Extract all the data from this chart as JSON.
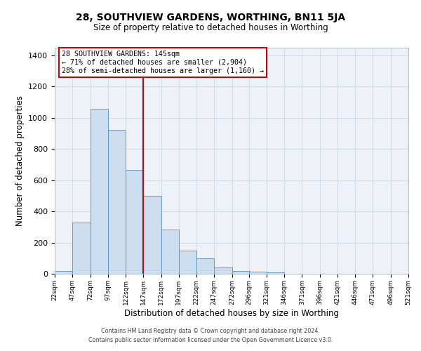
{
  "title_line1": "28, SOUTHVIEW GARDENS, WORTHING, BN11 5JA",
  "title_line2": "Size of property relative to detached houses in Worthing",
  "xlabel": "Distribution of detached houses by size in Worthing",
  "ylabel": "Number of detached properties",
  "bins": [
    22,
    47,
    72,
    97,
    122,
    147,
    172,
    197,
    222,
    247,
    272,
    296,
    321,
    346,
    371,
    396,
    421,
    446,
    471,
    496,
    521
  ],
  "counts": [
    20,
    330,
    1055,
    920,
    665,
    500,
    285,
    148,
    100,
    42,
    20,
    15,
    8,
    0,
    0,
    0,
    0,
    0,
    0,
    0
  ],
  "bar_color": "#ccddf0",
  "bar_edge_color": "#5a8fbd",
  "vline_x": 147,
  "vline_color": "#cc0000",
  "annotation_title": "28 SOUTHVIEW GARDENS: 145sqm",
  "annotation_line1": "← 71% of detached houses are smaller (2,904)",
  "annotation_line2": "28% of semi-detached houses are larger (1,160) →",
  "annotation_box_edge": "#cc0000",
  "ylim": [
    0,
    1450
  ],
  "yticks": [
    0,
    200,
    400,
    600,
    800,
    1000,
    1200,
    1400
  ],
  "xtick_labels": [
    "22sqm",
    "47sqm",
    "72sqm",
    "97sqm",
    "122sqm",
    "147sqm",
    "172sqm",
    "197sqm",
    "222sqm",
    "247sqm",
    "272sqm",
    "296sqm",
    "321sqm",
    "346sqm",
    "371sqm",
    "396sqm",
    "421sqm",
    "446sqm",
    "471sqm",
    "496sqm",
    "521sqm"
  ],
  "footnote1": "Contains HM Land Registry data © Crown copyright and database right 2024.",
  "footnote2": "Contains public sector information licensed under the Open Government Licence v3.0.",
  "grid_color": "#d0dce8",
  "bg_color": "#eef2f8"
}
